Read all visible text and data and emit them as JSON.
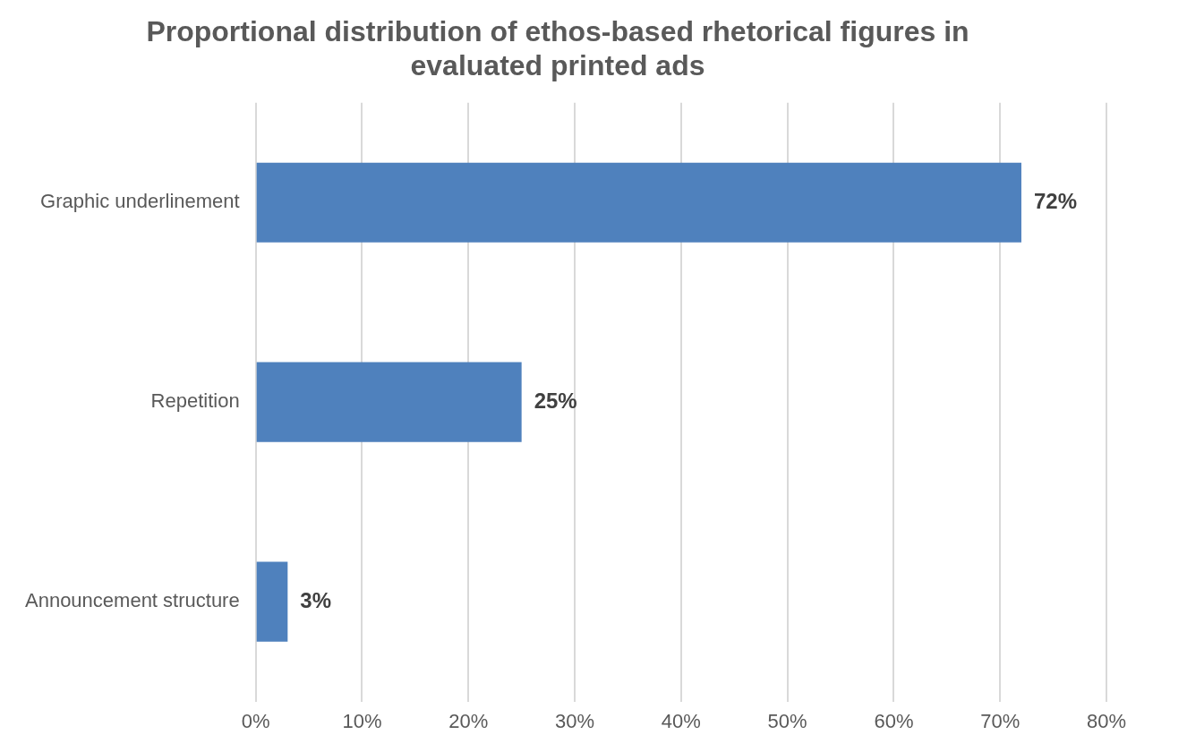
{
  "chart_data": {
    "type": "bar",
    "orientation": "horizontal",
    "title": "Proportional distribution of ethos-based rhetorical figures in evaluated printed ads",
    "categories": [
      "Graphic underlinement",
      "Repetition",
      "Announcement structure"
    ],
    "values": [
      72,
      25,
      3
    ],
    "value_labels": [
      "72%",
      "25%",
      "3%"
    ],
    "color": "#4f81bd",
    "xlim": [
      0,
      80
    ],
    "xticks": [
      {
        "value": 0,
        "label": "0%"
      },
      {
        "value": 10,
        "label": "10%"
      },
      {
        "value": 20,
        "label": "20%"
      },
      {
        "value": 30,
        "label": "30%"
      },
      {
        "value": 40,
        "label": "40%"
      },
      {
        "value": 50,
        "label": "50%"
      },
      {
        "value": 60,
        "label": "60%"
      },
      {
        "value": 70,
        "label": "70%"
      },
      {
        "value": 80,
        "label": "80%"
      }
    ],
    "grid": "x",
    "legend": false
  }
}
